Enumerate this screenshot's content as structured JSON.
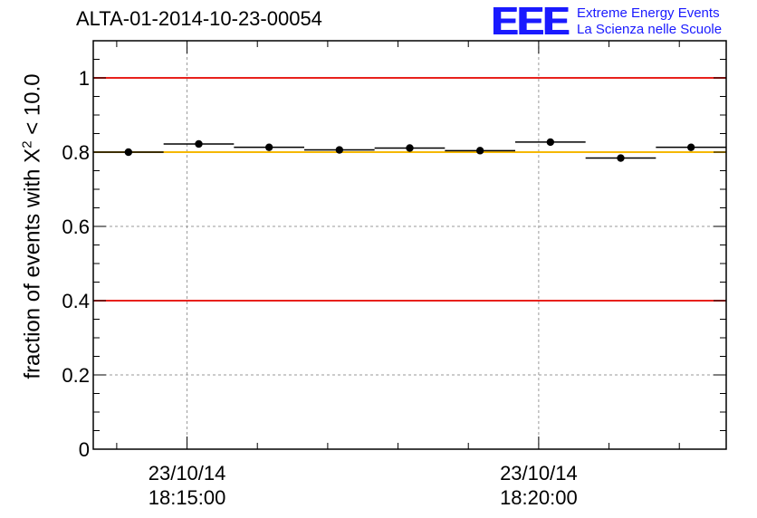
{
  "logo": {
    "mark": "EEE",
    "line1": "Extreme Energy Events",
    "line2": "La Scienza nelle Scuole"
  },
  "chart_data": {
    "type": "scatter",
    "title": "ALTA-01-2014-10-23-00054",
    "ylabel_main": "fraction of events with X",
    "ylabel_sup": "2",
    "ylabel_tail": " < 10.0",
    "ylim": [
      0,
      1.1
    ],
    "yticks": [
      0,
      0.2,
      0.4,
      0.6,
      0.8,
      1
    ],
    "ytick_labels": [
      "0",
      "0.2",
      "0.4",
      "0.6",
      "0.8",
      "1"
    ],
    "xlim": [
      "18:13:40",
      "18:22:40"
    ],
    "xticks": [
      {
        "time": "18:15:00",
        "date": "23/10/14",
        "label": "18:15:00"
      },
      {
        "time": "18:20:00",
        "date": "23/10/14",
        "label": "18:20:00"
      }
    ],
    "grid": true,
    "reference_lines": [
      {
        "y": 1.0,
        "color": "#e8211c"
      },
      {
        "y": 0.8,
        "color": "#f5b800"
      },
      {
        "y": 0.4,
        "color": "#e8211c"
      }
    ],
    "points": [
      {
        "x_start": "18:13:40",
        "x_end": "18:14:40",
        "y": 0.8
      },
      {
        "x_start": "18:14:40",
        "x_end": "18:15:40",
        "y": 0.822
      },
      {
        "x_start": "18:15:40",
        "x_end": "18:16:40",
        "y": 0.813
      },
      {
        "x_start": "18:16:40",
        "x_end": "18:17:40",
        "y": 0.806
      },
      {
        "x_start": "18:17:40",
        "x_end": "18:18:40",
        "y": 0.811
      },
      {
        "x_start": "18:18:40",
        "x_end": "18:19:40",
        "y": 0.804
      },
      {
        "x_start": "18:19:40",
        "x_end": "18:20:40",
        "y": 0.827
      },
      {
        "x_start": "18:20:40",
        "x_end": "18:21:40",
        "y": 0.784
      },
      {
        "x_start": "18:21:40",
        "x_end": "18:22:40",
        "y": 0.813
      }
    ],
    "colors": {
      "points": "#000000",
      "frame": "#000000",
      "grid": "#9a9a9a"
    }
  }
}
